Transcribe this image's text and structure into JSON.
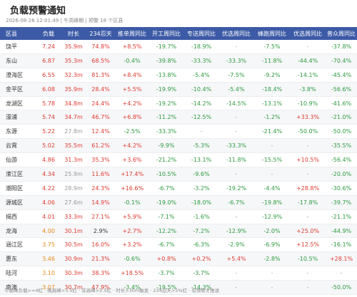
{
  "header": {
    "icon": "",
    "title": "负载预警通知",
    "subtitle": "2026-08-26 12:01:49 | 午高峰期 | 预警 18 个区县"
  },
  "table": {
    "columns": [
      "区县",
      "负载",
      "时长",
      "234忍天",
      "推单周同比",
      "开工周同比",
      "专送周同比",
      "优选周同比",
      "蜂跑周同比",
      "优选周同比",
      "普众周同比"
    ],
    "rows": [
      [
        "饶平",
        "7.24",
        "35.9m",
        "74.8%",
        "+8.5%",
        "-19.7%",
        "-18.9%",
        "-",
        "-7.5%",
        "-",
        "-37.8%"
      ],
      [
        "东山",
        "6.87",
        "35.3m",
        "68.5%",
        "-0.4%",
        "-39.8%",
        "-33.3%",
        "-33.3%",
        "-11.8%",
        "-44.4%",
        "-70.4%"
      ],
      [
        "澄海区",
        "6.55",
        "32.3m",
        "81.3%",
        "+8.4%",
        "-13.8%",
        "-5.4%",
        "-7.5%",
        "-9.2%",
        "-14.1%",
        "-45.4%"
      ],
      [
        "金平区",
        "6.08",
        "35.9m",
        "28.4%",
        "+5.5%",
        "-19.9%",
        "-10.4%",
        "-5.4%",
        "-18.4%",
        "-3.8%",
        "-56.6%"
      ],
      [
        "龙湖区",
        "5.78",
        "34.8m",
        "24.4%",
        "+4.2%",
        "-19.2%",
        "-14.2%",
        "-14.5%",
        "-13.1%",
        "-10.9%",
        "-41.6%"
      ],
      [
        "濠浦",
        "5.74",
        "34.7m",
        "46.7%",
        "+6.8%",
        "-11.2%",
        "-12.5%",
        "-",
        "-1.2%",
        "+33.3%",
        "-21.0%"
      ],
      [
        "东源",
        "5.22",
        "27.8m",
        "12.4%",
        "-2.5%",
        "-33.3%",
        "-",
        "-",
        "-21.4%",
        "-50.0%",
        "-50.0%"
      ],
      [
        "云霄",
        "5.02",
        "35.5m",
        "61.2%",
        "+4.2%",
        "-9.9%",
        "-5.3%",
        "-33.3%",
        "-",
        "-",
        "-35.5%"
      ],
      [
        "仙游",
        "4.86",
        "31.3m",
        "35.3%",
        "+3.6%",
        "-21.2%",
        "-13.1%",
        "-11.8%",
        "-15.5%",
        "+10.5%",
        "-56.4%"
      ],
      [
        "潆江区",
        "4.34",
        "25.9m",
        "11.6%",
        "+17.4%",
        "-10.5%",
        "-9.6%",
        "-",
        "-",
        "-",
        "-20.0%"
      ],
      [
        "潮阳区",
        "4.22",
        "28.9m",
        "24.3%",
        "+16.6%",
        "-6.7%",
        "-3.2%",
        "-19.2%",
        "-4.4%",
        "+28.8%",
        "-30.6%"
      ],
      [
        "源城区",
        "4.06",
        "27.6m",
        "14.9%",
        "-0.1%",
        "-19.0%",
        "-18.0%",
        "-6.7%",
        "-19.8%",
        "-17.8%",
        "-39.7%"
      ],
      [
        "揭西",
        "4.01",
        "33.3m",
        "27.1%",
        "+5.9%",
        "-7.1%",
        "-1.6%",
        "-",
        "-12.9%",
        "-",
        "-21.1%"
      ],
      [
        "龙海",
        "4.00",
        "30.1m",
        "2.9%",
        "+2.7%",
        "-12.2%",
        "-7.2%",
        "-12.9%",
        "-2.0%",
        "+25.0%",
        "-44.9%"
      ],
      [
        "涵江区",
        "3.75",
        "30.5m",
        "16.0%",
        "+3.2%",
        "-6.7%",
        "-6.3%",
        "-2.9%",
        "-6.9%",
        "+12.5%",
        "-16.1%"
      ],
      [
        "惠东",
        "3.46",
        "30.9m",
        "21.3%",
        "-0.6%",
        "+0.8%",
        "+0.2%",
        "+5.4%",
        "-2.8%",
        "-10.5%",
        "+28.1%"
      ],
      [
        "陆河",
        "3.10",
        "30.3m",
        "38.3%",
        "+18.5%",
        "-3.7%",
        "-3.7%",
        "-",
        "-",
        "-",
        "-"
      ],
      [
        "南澳",
        "3.07",
        "30.7m",
        "47.9%",
        "-3.4%",
        "-19.5%",
        "-14.3%",
        "-",
        "-",
        "-",
        "-50.0%"
      ]
    ]
  },
  "footer": "午高峰负载>=4红 · 晚高峰>3.5红 · 非高峰>2.5红 · 时长>30m触发 · 234忍天>5%红 · 有预警才推送"
}
